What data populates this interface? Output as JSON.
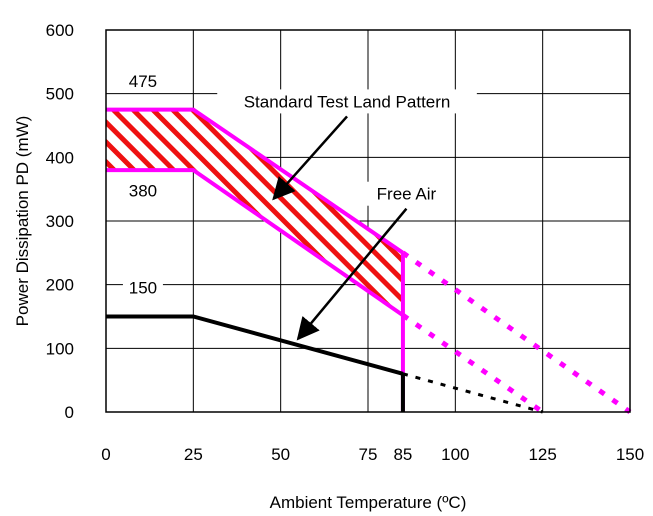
{
  "chart_data": {
    "type": "line",
    "title": "",
    "xlabel": "Ambient Temperature (ºC)",
    "ylabel": "Power Dissipation PD (mW)",
    "xlim": [
      0,
      150
    ],
    "ylim": [
      0,
      600
    ],
    "grid": true,
    "x_ticks": [
      {
        "value": 0,
        "label": "0"
      },
      {
        "value": 25,
        "label": "25"
      },
      {
        "value": 50,
        "label": "50"
      },
      {
        "value": 75,
        "label": "75"
      },
      {
        "value": 85,
        "label": "85"
      },
      {
        "value": 100,
        "label": "100"
      },
      {
        "value": 125,
        "label": "125"
      },
      {
        "value": 150,
        "label": "150"
      }
    ],
    "y_ticks": [
      {
        "value": 0,
        "label": "0"
      },
      {
        "value": 100,
        "label": "100"
      },
      {
        "value": 200,
        "label": "200"
      },
      {
        "value": 300,
        "label": "300"
      },
      {
        "value": 400,
        "label": "400"
      },
      {
        "value": 500,
        "label": "500"
      },
      {
        "value": 600,
        "label": "600"
      }
    ],
    "series": [
      {
        "name": "Standard Test Land Pattern",
        "color": "#ff00ff",
        "upper": {
          "x": [
            0,
            25,
            85
          ],
          "y": [
            475,
            475,
            250
          ]
        },
        "lower": {
          "x": [
            0,
            25,
            85
          ],
          "y": [
            380,
            380,
            152
          ]
        },
        "dotted_upper": {
          "x": [
            85,
            150
          ],
          "y": [
            250,
            0
          ]
        },
        "dotted_lower": {
          "x": [
            85,
            125
          ],
          "y": [
            152,
            0
          ]
        },
        "fill": "red-white-hatch"
      },
      {
        "name": "Free Air",
        "color": "#000000",
        "x": [
          0,
          25,
          85
        ],
        "y": [
          150,
          150,
          60
        ],
        "dotted": {
          "x": [
            85,
            125
          ],
          "y": [
            60,
            0
          ]
        }
      }
    ],
    "value_labels": [
      {
        "text": "475",
        "x": 10,
        "y": 512
      },
      {
        "text": "380",
        "x": 10,
        "y": 340
      },
      {
        "text": "150",
        "x": 10,
        "y": 188
      }
    ],
    "annotations": [
      {
        "text": "Standard Test Land Pattern",
        "arrow_from": [
          69,
          480
        ],
        "arrow_to": [
          48,
          335
        ]
      },
      {
        "text": "Free Air",
        "arrow_from": [
          86,
          335
        ],
        "arrow_to": [
          55,
          115
        ]
      }
    ]
  }
}
